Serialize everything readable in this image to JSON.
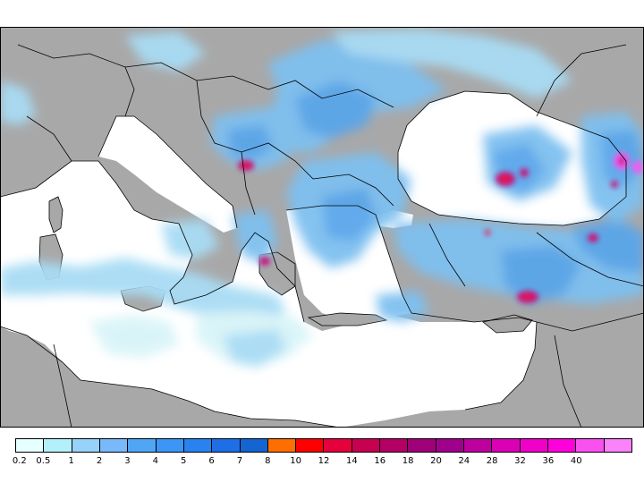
{
  "map": {
    "land_color": "#a8a8a8",
    "sea_color": "#ffffff",
    "border_color": "#000000",
    "precip_shades": [
      "#d8f4f8",
      "#a8dcf4",
      "#7ec0f0",
      "#5aa6ea",
      "#3d8ce2",
      "#2a6fd8"
    ],
    "heavy_colors": [
      "#e8193c",
      "#c8127a",
      "#f25cf0"
    ]
  },
  "legend": {
    "colors": [
      "#e6ffff",
      "#b4f0fa",
      "#96d2fa",
      "#78b9fa",
      "#50a5f5",
      "#3c96f5",
      "#2882f0",
      "#1e6ee6",
      "#1464d2",
      "#ff6e00",
      "#ff0000",
      "#e6003c",
      "#c80050",
      "#b40064",
      "#a00078",
      "#a0008c",
      "#be00a0",
      "#dc00b4",
      "#f000c8",
      "#ff00dc",
      "#fa50f0",
      "#fa82fa"
    ],
    "labels": [
      "0.2",
      "0.5",
      "1",
      "2",
      "3",
      "4",
      "5",
      "6",
      "7",
      "8",
      "10",
      "12",
      "14",
      "16",
      "18",
      "20",
      "24",
      "28",
      "32",
      "36",
      "40"
    ]
  }
}
